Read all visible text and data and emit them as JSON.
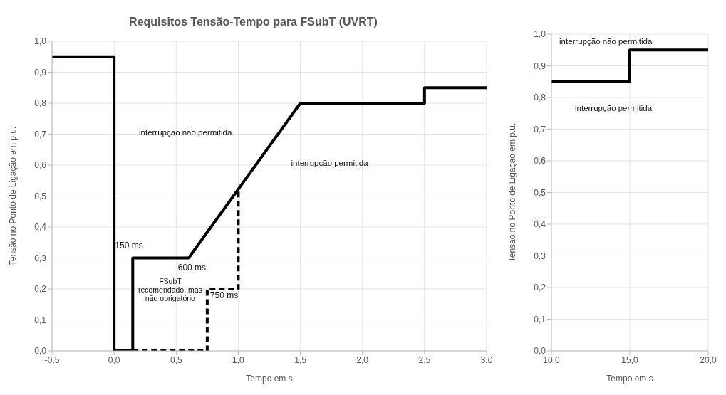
{
  "chart_data": [
    {
      "type": "line",
      "title": "Requisitos Tensão-Tempo para FSubT (UVRT)",
      "xlabel": "Tempo em s",
      "ylabel": "Tensão no Ponto de Ligação em p.u.",
      "series": [
        {
          "color": "#000000",
          "line_style": "solid",
          "x": [
            -0.5,
            0,
            0,
            0.15,
            0.15,
            0.6,
            1.5,
            2.5,
            2.5,
            3.0
          ],
          "values": [
            0.95,
            0.95,
            0,
            0,
            0.3,
            0.3,
            0.8,
            0.8,
            0.85,
            0.85
          ]
        },
        {
          "color": "#000000",
          "line_style": "dashed",
          "x": [
            0.15,
            0.75,
            0.75,
            1.0,
            1.0
          ],
          "values": [
            0,
            0,
            0.2,
            0.2,
            0.52
          ]
        }
      ],
      "xlim": [
        -0.5,
        3.0
      ],
      "xticks": [
        {
          "value": -0.5,
          "label": "-0,5"
        },
        {
          "value": 0,
          "label": "0,0"
        },
        {
          "value": 0.5,
          "label": "0,5"
        },
        {
          "value": 1.0,
          "label": "1,0"
        },
        {
          "value": 1.5,
          "label": "1,5"
        },
        {
          "value": 2.0,
          "label": "2,0"
        },
        {
          "value": 2.5,
          "label": "2,5"
        },
        {
          "value": 3.0,
          "label": "3,0"
        }
      ],
      "ylim": [
        0,
        1
      ],
      "yticks": [
        {
          "value": 0,
          "label": "0,0"
        },
        {
          "value": 0.1,
          "label": "0,1"
        },
        {
          "value": 0.2,
          "label": "0,2"
        },
        {
          "value": 0.3,
          "label": "0,3"
        },
        {
          "value": 0.4,
          "label": "0,4"
        },
        {
          "value": 0.5,
          "label": "0,5"
        },
        {
          "value": 0.6,
          "label": "0,6"
        },
        {
          "value": 0.7,
          "label": "0,7"
        },
        {
          "value": 0.8,
          "label": "0,8"
        },
        {
          "value": 0.9,
          "label": "0,9"
        },
        {
          "value": 1.0,
          "label": "1,0"
        }
      ],
      "grid": true,
      "legend": false,
      "marker": "none",
      "annotations": [
        {
          "text": "150 ms",
          "x": 0.15,
          "y": 0.3
        },
        {
          "text": "600 ms",
          "x": 0.6,
          "y": 0.3
        },
        {
          "text": "750 ms",
          "x": 0.75,
          "y": 0.2
        },
        "interrupção não permitida",
        "interrupção permitida",
        "FSubT recomendado, mas não obrigatório"
      ]
    },
    {
      "type": "line",
      "xlabel": "Tempo em s",
      "ylabel": "Tensão no Ponto de Ligação em p.u.",
      "series": [
        {
          "color": "#000000",
          "line_style": "solid",
          "x": [
            10,
            15,
            15,
            20
          ],
          "values": [
            0.85,
            0.85,
            0.95,
            0.95
          ]
        }
      ],
      "xlim": [
        10,
        20
      ],
      "xticks": [
        {
          "value": 10,
          "label": "10,0"
        },
        {
          "value": 15,
          "label": "15,0"
        },
        {
          "value": 20,
          "label": "20,0"
        }
      ],
      "ylim": [
        0,
        1
      ],
      "yticks": [
        {
          "value": 0,
          "label": "0,0"
        },
        {
          "value": 0.1,
          "label": "0,1"
        },
        {
          "value": 0.2,
          "label": "0,2"
        },
        {
          "value": 0.3,
          "label": "0,3"
        },
        {
          "value": 0.4,
          "label": "0,4"
        },
        {
          "value": 0.5,
          "label": "0,5"
        },
        {
          "value": 0.6,
          "label": "0,6"
        },
        {
          "value": 0.7,
          "label": "0,7"
        },
        {
          "value": 0.8,
          "label": "0,8"
        },
        {
          "value": 0.9,
          "label": "0,9"
        },
        {
          "value": 1.0,
          "label": "1,0"
        }
      ],
      "grid": true,
      "legend": false,
      "marker": "none",
      "annotations": [
        "interrupção não permitida",
        "interrupção permitida"
      ]
    }
  ]
}
